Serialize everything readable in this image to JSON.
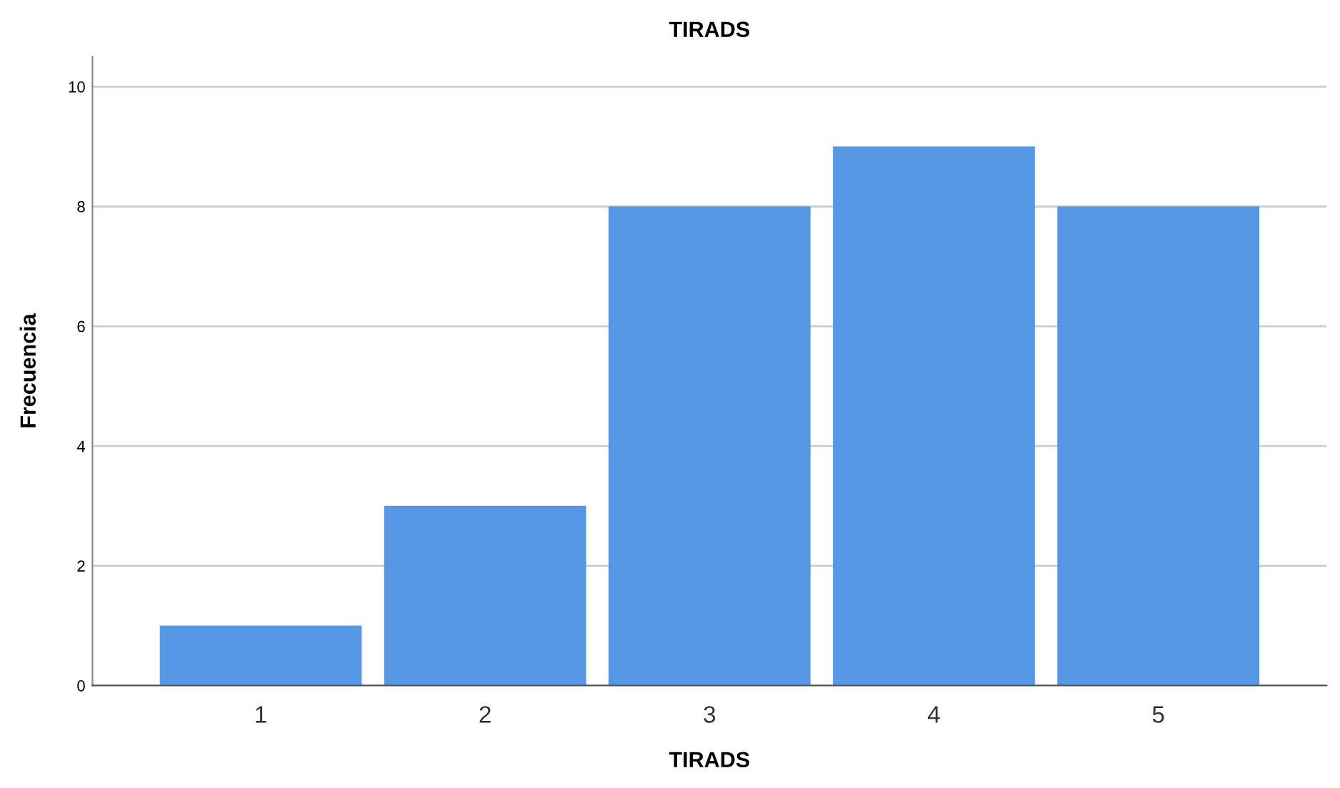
{
  "chart_data": {
    "type": "bar",
    "title": "TIRADS",
    "xlabel": "TIRADS",
    "ylabel": "Frecuencia",
    "categories": [
      "1",
      "2",
      "3",
      "4",
      "5"
    ],
    "values": [
      1,
      3,
      8,
      9,
      8
    ],
    "color": "#5596e5",
    "ylim": [
      0,
      10.5
    ],
    "yticks": [
      0,
      2,
      4,
      6,
      8,
      10
    ],
    "grid": "y"
  }
}
